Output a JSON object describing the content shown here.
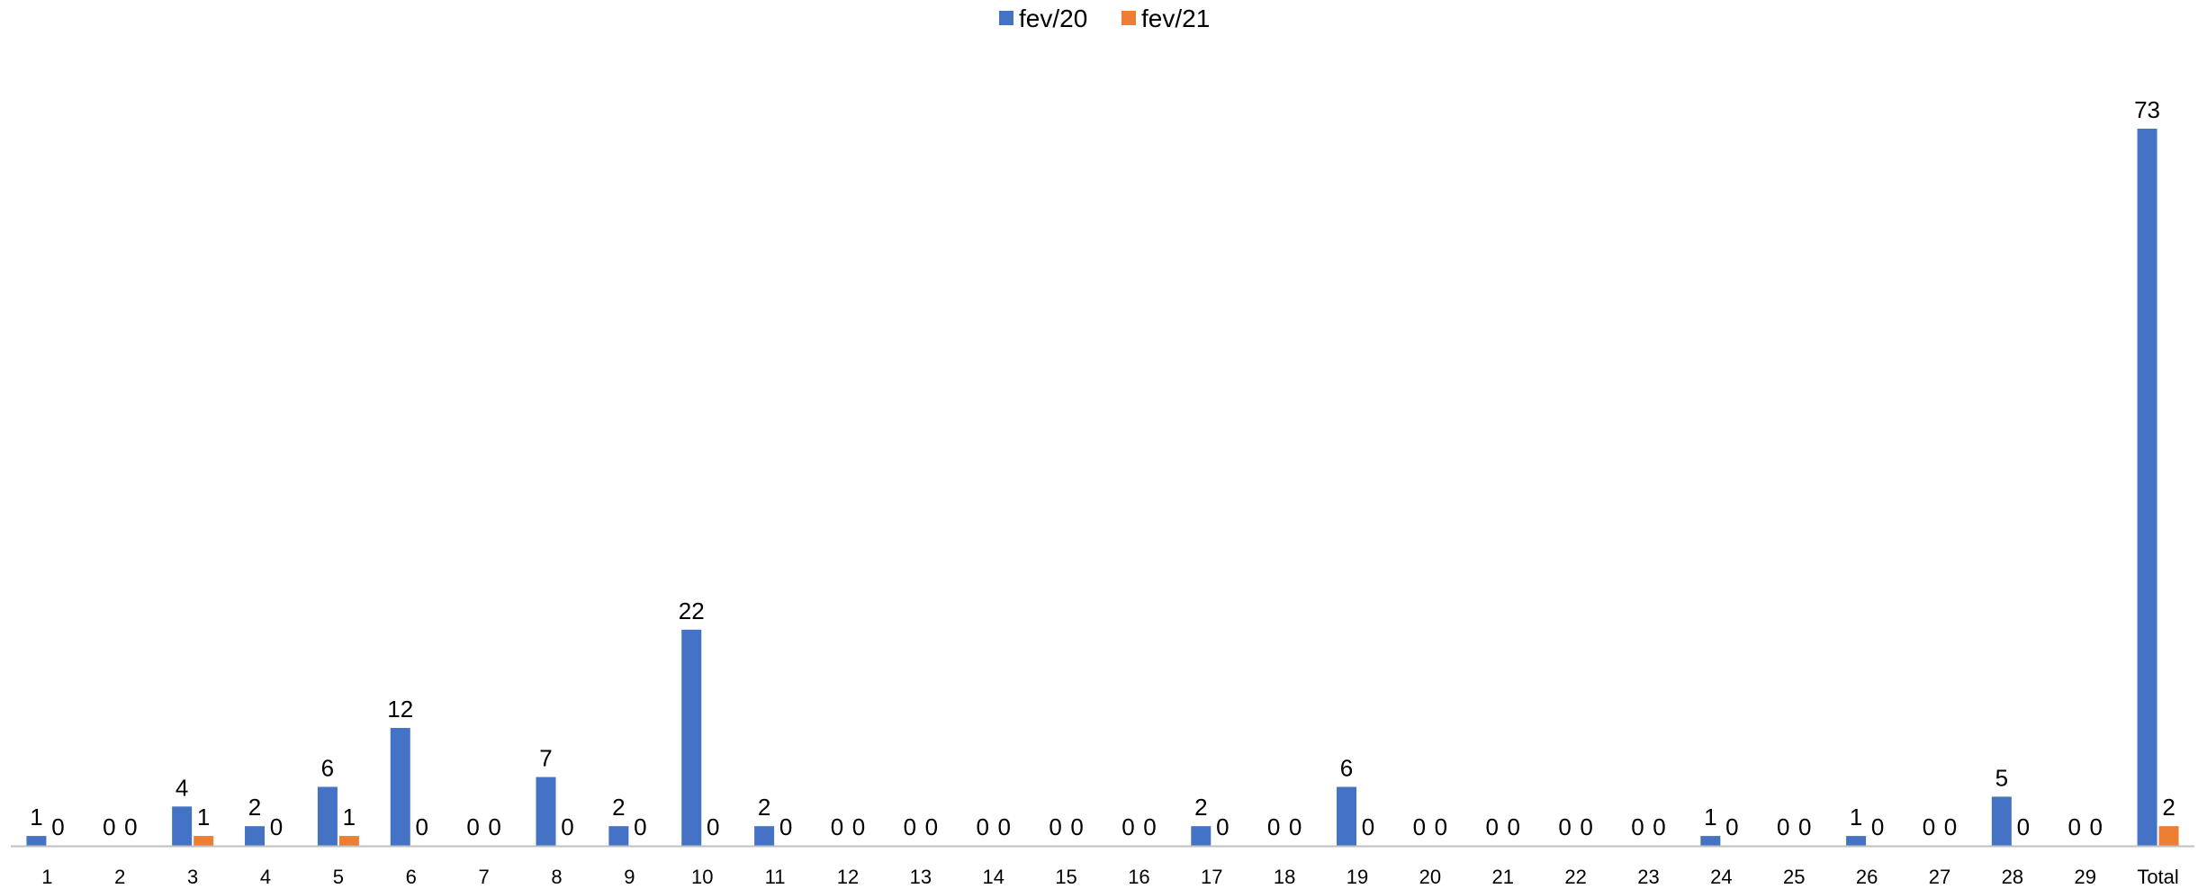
{
  "chart_data": {
    "type": "bar",
    "categories": [
      "1",
      "2",
      "3",
      "4",
      "5",
      "6",
      "7",
      "8",
      "9",
      "10",
      "11",
      "12",
      "13",
      "14",
      "15",
      "16",
      "17",
      "18",
      "19",
      "20",
      "21",
      "22",
      "23",
      "24",
      "25",
      "26",
      "27",
      "28",
      "29",
      "Total"
    ],
    "series": [
      {
        "name": "fev/20",
        "color": "#4472C4",
        "values": [
          1,
          0,
          4,
          2,
          6,
          12,
          0,
          7,
          2,
          22,
          2,
          0,
          0,
          0,
          0,
          0,
          2,
          0,
          6,
          0,
          0,
          0,
          0,
          1,
          0,
          1,
          0,
          5,
          0,
          73
        ]
      },
      {
        "name": "fev/21",
        "color": "#ED7D31",
        "values": [
          0,
          0,
          1,
          0,
          1,
          0,
          0,
          0,
          0,
          0,
          0,
          0,
          0,
          0,
          0,
          0,
          0,
          0,
          0,
          0,
          0,
          0,
          0,
          0,
          0,
          0,
          0,
          0,
          0,
          2
        ]
      }
    ],
    "legend_position": "top-center",
    "grid": false,
    "data_labels": true,
    "ylim": [
      0,
      73
    ],
    "axis_color": "#BFBFBF"
  }
}
